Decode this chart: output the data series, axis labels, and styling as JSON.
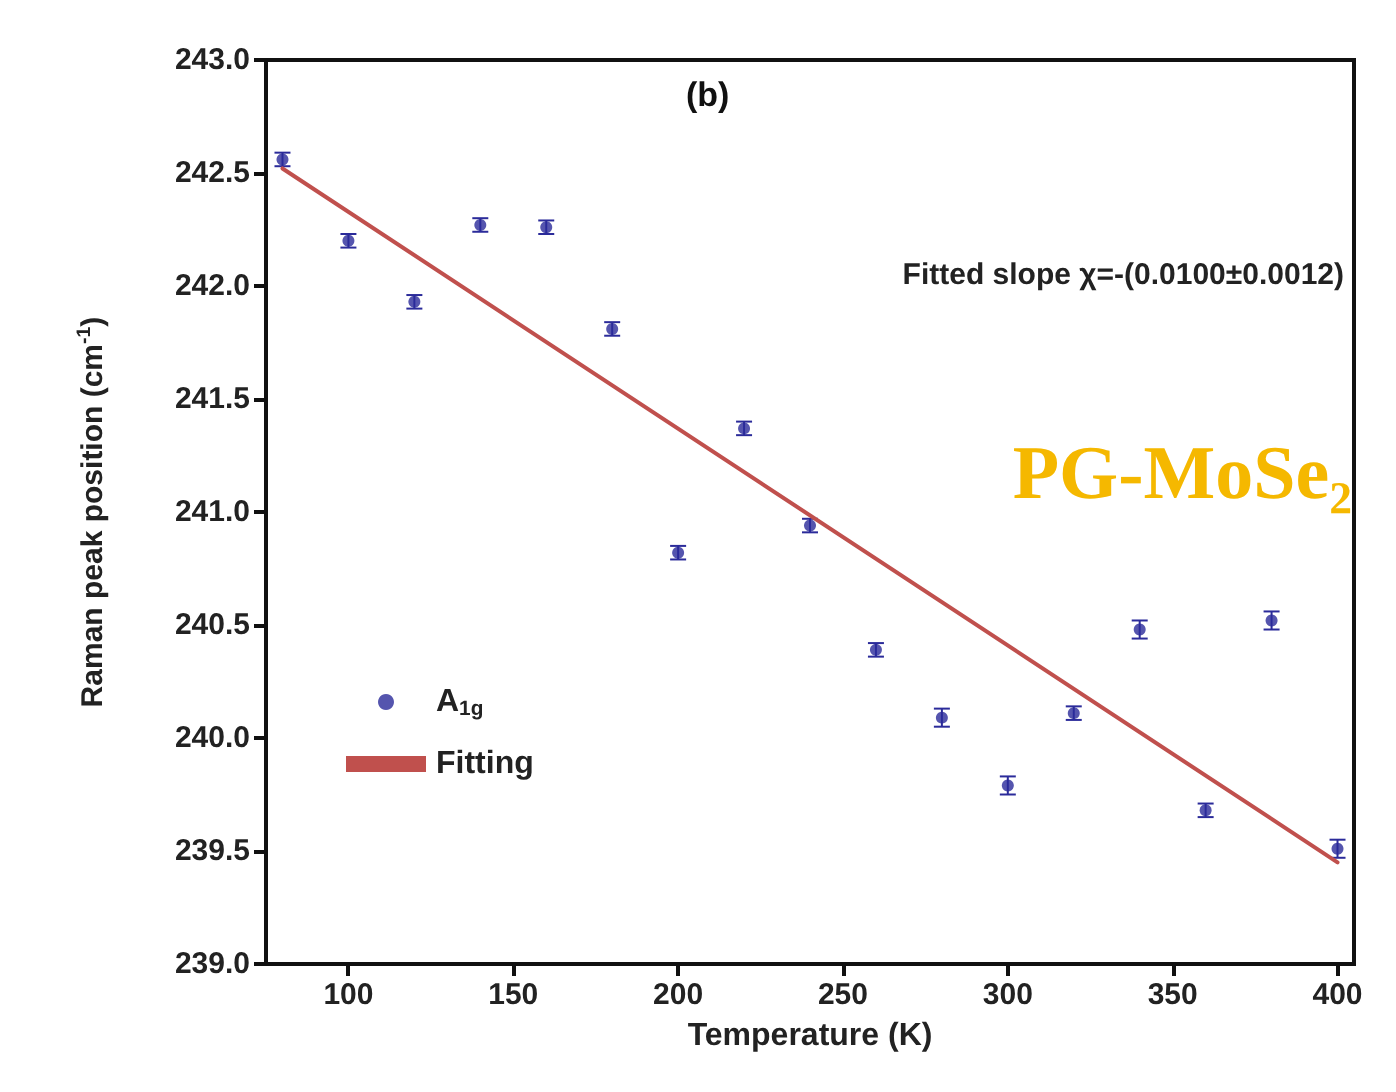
{
  "chart_data": {
    "type": "scatter",
    "title": "(b)",
    "xlabel": "Temperature (K)",
    "ylabel": "Raman peak position (cm$^{-1}$)",
    "annotations": [
      "Fitted slope χ=-(0.0100±0.0012)",
      "PG-MoSe₂"
    ],
    "xlim": [
      75,
      405
    ],
    "xticks": [
      100,
      150,
      200,
      250,
      300,
      350,
      400
    ],
    "ylim": [
      239,
      243
    ],
    "yticks": [
      {
        "value": 239,
        "label": "239.0"
      },
      {
        "value": 239.5,
        "label": "239.5"
      },
      {
        "value": 240,
        "label": "240.0"
      },
      {
        "value": 240.5,
        "label": "240.5"
      },
      {
        "value": 241,
        "label": "241.0"
      },
      {
        "value": 241.5,
        "label": "241.5"
      },
      {
        "value": 242,
        "label": "242.0"
      },
      {
        "value": 242.5,
        "label": "242.5"
      },
      {
        "value": 243,
        "label": "243.0"
      }
    ],
    "x": [
      80,
      100,
      120,
      140,
      160,
      180,
      200,
      220,
      240,
      260,
      280,
      300,
      320,
      340,
      360,
      380,
      400
    ],
    "series": [
      {
        "name": "A$_{1g}$",
        "color": "#2b2b9a",
        "marker": "circle",
        "values": [
          242.56,
          242.2,
          241.93,
          242.27,
          242.26,
          241.81,
          240.82,
          241.37,
          240.94,
          240.39,
          240.09,
          239.79,
          240.11,
          240.48,
          239.68,
          240.52,
          239.51
        ],
        "errors": [
          0.03,
          0.03,
          0.03,
          0.03,
          0.03,
          0.03,
          0.03,
          0.03,
          0.03,
          0.03,
          0.04,
          0.04,
          0.03,
          0.04,
          0.03,
          0.04,
          0.04
        ]
      },
      {
        "name": "Fitting",
        "type": "line",
        "color": "#c0504d",
        "x": [
          80,
          400
        ],
        "values": [
          242.52,
          239.45
        ],
        "line_style": "solid",
        "marker": "none"
      }
    ],
    "legend": "left",
    "grid": false
  }
}
